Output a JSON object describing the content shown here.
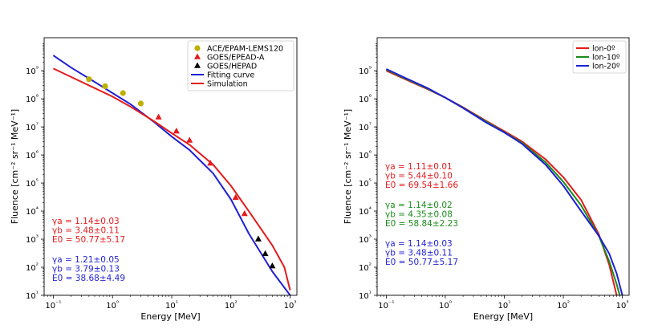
{
  "chart_data": [
    {
      "type": "line",
      "xlabel": "Energy [MeV]",
      "ylabel": "Fluence [cm⁻² sr⁻¹ MeV⁻¹]",
      "xscale": "log",
      "yscale": "log",
      "xlim": [
        0.07,
        1300
      ],
      "ylim": [
        10,
        15000000000.0
      ],
      "x_ticks": [
        0.1,
        1,
        10,
        100,
        1000
      ],
      "x_tick_labels": [
        "10⁻¹",
        "10⁰",
        "10¹",
        "10²",
        "10³"
      ],
      "y_ticks": [
        10,
        100,
        1000,
        10000,
        100000,
        1000000.0,
        10000000.0,
        100000000.0,
        1000000000.0
      ],
      "y_tick_labels": [
        "10¹",
        "10²",
        "10³",
        "10⁴",
        "10⁵",
        "10⁶",
        "10⁷",
        "10⁸",
        "10⁹"
      ],
      "legend_position": "top-right",
      "legend": [
        {
          "label": "ACE/EPAM-LEMS120",
          "kind": "marker",
          "marker": "circle",
          "color": "#bdb000"
        },
        {
          "label": "GOES/EPEAD-A",
          "kind": "marker",
          "marker": "triangle",
          "color": "#e41a1c"
        },
        {
          "label": "GOES/HEPAD",
          "kind": "marker",
          "marker": "triangle",
          "color": "#000000"
        },
        {
          "label": "Fitting curve",
          "kind": "line",
          "color": "#1f1fd6"
        },
        {
          "label": "Simulation",
          "kind": "line",
          "color": "#e41a1c"
        }
      ],
      "series": [
        {
          "name": "Fitting curve",
          "kind": "line",
          "color": "#1f1fd6",
          "x": [
            0.1,
            0.2,
            0.5,
            1,
            2,
            5,
            10,
            20,
            50,
            100,
            200,
            500,
            1000
          ],
          "y": [
            3500000000.0,
            1300000000.0,
            400000000.0,
            160000000.0,
            65000000.0,
            15000000.0,
            4500000.0,
            1500000.0,
            220000.0,
            26000.0,
            1600.0,
            70.0,
            10.0
          ]
        },
        {
          "name": "Simulation",
          "kind": "line",
          "color": "#e41a1c",
          "x": [
            0.1,
            0.2,
            0.5,
            1,
            2,
            5,
            10,
            20,
            50,
            100,
            200,
            500,
            800,
            1000
          ],
          "y": [
            1200000000.0,
            600000000.0,
            240000000.0,
            120000000.0,
            53000000.0,
            16000000.0,
            6000000.0,
            2300000.0,
            450000.0,
            80000.0,
            10000.0,
            600.0,
            100.0,
            15.0
          ]
        },
        {
          "name": "ACE/EPAM-LEMS120",
          "kind": "marker",
          "marker": "circle",
          "color": "#bdb000",
          "x": [
            0.4,
            0.75,
            1.5,
            3.0
          ],
          "y": [
            500000000.0,
            280000000.0,
            160000000.0,
            68000000.0
          ]
        },
        {
          "name": "GOES/EPEAD-A",
          "kind": "marker",
          "marker": "triangle",
          "color": "#e41a1c",
          "x": [
            6,
            12,
            20,
            45,
            120,
            170
          ],
          "y": [
            22000000.0,
            7000000.0,
            3300000.0,
            500000.0,
            30000.0,
            8000.0
          ]
        },
        {
          "name": "GOES/HEPAD",
          "kind": "marker",
          "marker": "triangle",
          "color": "#000000",
          "x": [
            290,
            380,
            500
          ],
          "y": [
            1000.0,
            300.0,
            110.0
          ]
        }
      ],
      "annotations": [
        {
          "color": "#e41a1c",
          "lines": [
            "γa = 1.14±0.03",
            "γb = 3.48±0.11",
            "E0 = 50.77±5.17"
          ]
        },
        {
          "color": "#1f1fd6",
          "lines": [
            "γa = 1.21±0.05",
            "γb = 3.79±0.13",
            "E0 = 38.68±4.49"
          ]
        }
      ]
    },
    {
      "type": "line",
      "xlabel": "Energy [MeV]",
      "ylabel": "Fluence [cm⁻² sr⁻¹ MeV⁻¹]",
      "xscale": "log",
      "yscale": "log",
      "xlim": [
        0.07,
        1300
      ],
      "ylim": [
        10,
        15000000000.0
      ],
      "x_ticks": [
        0.1,
        1,
        10,
        100,
        1000
      ],
      "x_tick_labels": [
        "10⁻¹",
        "10⁰",
        "10¹",
        "10²",
        "10³"
      ],
      "y_ticks": [
        10,
        100,
        1000,
        10000,
        100000,
        1000000.0,
        10000000.0,
        100000000.0,
        1000000000.0
      ],
      "y_tick_labels": [
        "10¹",
        "10²",
        "10³",
        "10⁴",
        "10⁵",
        "10⁶",
        "10⁷",
        "10⁸",
        "10⁹"
      ],
      "legend_position": "top-right",
      "legend": [
        {
          "label": "lon-0º",
          "kind": "line",
          "color": "#e41a1c"
        },
        {
          "label": "lon-10º",
          "kind": "line",
          "color": "#1a8a1a"
        },
        {
          "label": "lon-20º",
          "kind": "line",
          "color": "#1f1fd6"
        }
      ],
      "series": [
        {
          "name": "lon-0º",
          "kind": "line",
          "color": "#e41a1c",
          "x": [
            0.1,
            0.2,
            0.5,
            1,
            2,
            5,
            10,
            20,
            50,
            100,
            200,
            400,
            600,
            800
          ],
          "y": [
            1000000000.0,
            520000000.0,
            220000000.0,
            110000000.0,
            50000000.0,
            16000000.0,
            7000000.0,
            3000000.0,
            700000.0,
            160000.0,
            25000.0,
            1500.0,
            120.0,
            10.0
          ]
        },
        {
          "name": "lon-10º",
          "kind": "line",
          "color": "#1a8a1a",
          "x": [
            0.1,
            0.2,
            0.5,
            1,
            2,
            5,
            10,
            20,
            50,
            100,
            200,
            400,
            600,
            800,
            900
          ],
          "y": [
            1100000000.0,
            550000000.0,
            230000000.0,
            110000000.0,
            48000000.0,
            15000000.0,
            6500000.0,
            2700000.0,
            550000.0,
            110000.0,
            16000.0,
            1300.0,
            160.0,
            25.0,
            10.0
          ]
        },
        {
          "name": "lon-20º",
          "kind": "line",
          "color": "#1f1fd6",
          "x": [
            0.1,
            0.2,
            0.5,
            1,
            2,
            5,
            10,
            20,
            50,
            100,
            200,
            400,
            600,
            800,
            1000
          ],
          "y": [
            1150000000.0,
            580000000.0,
            240000000.0,
            110000000.0,
            47000000.0,
            14000000.0,
            6300000.0,
            2500000.0,
            450000.0,
            80000.0,
            10000.0,
            1300.0,
            300.0,
            60.0,
            10.0
          ]
        }
      ],
      "annotations": [
        {
          "color": "#e41a1c",
          "lines": [
            "γa = 1.11±0.01",
            "γb = 5.44±0.10",
            "E0 = 69.54±1.66"
          ]
        },
        {
          "color": "#1a8a1a",
          "lines": [
            "γa = 1.14±0.02",
            "γb = 4.35±0.08",
            "E0 = 58.84±2.23"
          ]
        },
        {
          "color": "#1f1fd6",
          "lines": [
            "γa = 1.14±0.03",
            "γb = 3.48±0.11",
            "E0 = 50.77±5.17"
          ]
        }
      ]
    }
  ]
}
